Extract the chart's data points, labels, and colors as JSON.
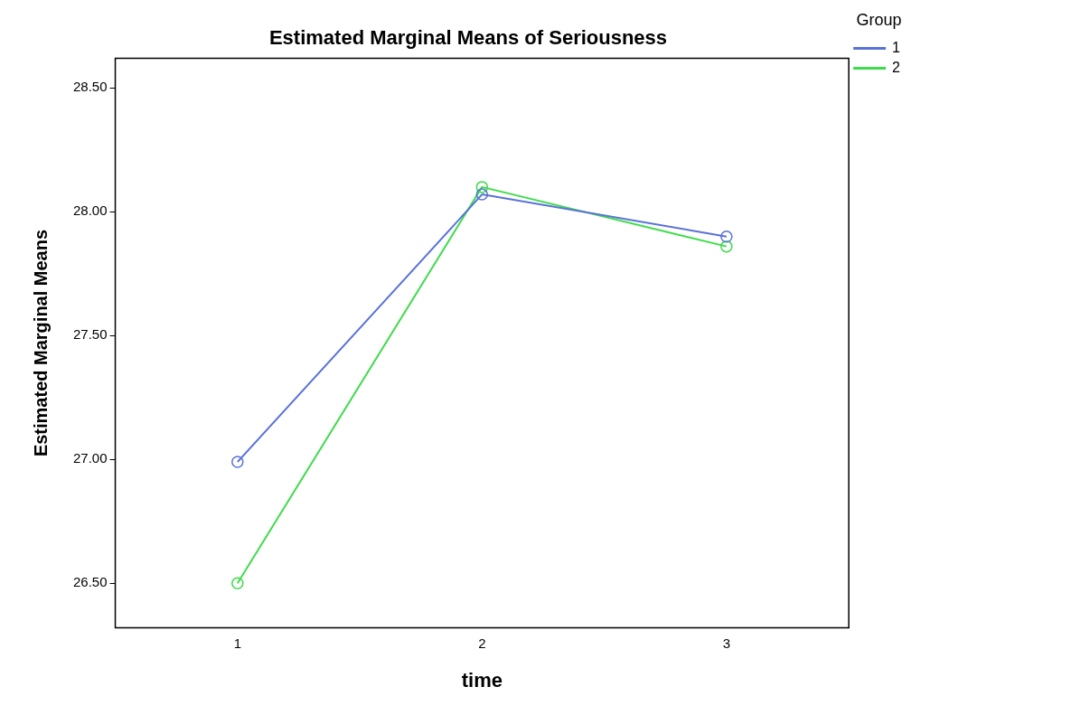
{
  "chart_data": {
    "type": "line",
    "title": "Estimated Marginal Means of Seriousness",
    "xlabel": "time",
    "ylabel": "Estimated Marginal Means",
    "legend_title": "Group",
    "categories": [
      "1",
      "2",
      "3"
    ],
    "series": [
      {
        "name": "1",
        "color": "#5a72d8",
        "values": [
          26.99,
          28.07,
          27.9
        ]
      },
      {
        "name": "2",
        "color": "#3ddc4a",
        "values": [
          26.5,
          28.1,
          27.86
        ]
      }
    ],
    "ylim": [
      26.32,
      28.62
    ],
    "yticks": [
      {
        "value": 26.5,
        "label": "26.50"
      },
      {
        "value": 27,
        "label": "27.00"
      },
      {
        "value": 27.5,
        "label": "27.50"
      },
      {
        "value": 28,
        "label": "28.00"
      },
      {
        "value": 28.5,
        "label": "28.50"
      }
    ],
    "grid": false,
    "legend": "top right",
    "marker": "circle",
    "line_style": "solid"
  }
}
